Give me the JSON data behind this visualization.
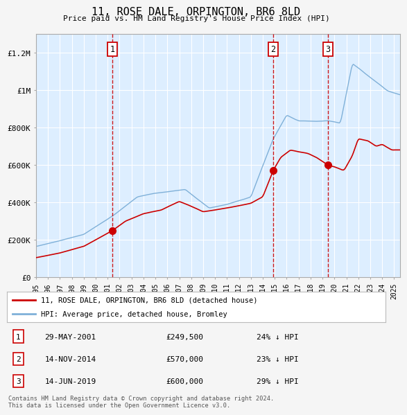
{
  "title": "11, ROSE DALE, ORPINGTON, BR6 8LD",
  "subtitle": "Price paid vs. HM Land Registry's House Price Index (HPI)",
  "plot_bg_color": "#ddeeff",
  "fig_bg_color": "#f5f5f5",
  "red_line_color": "#cc0000",
  "blue_line_color": "#7fb0d8",
  "marker_color": "#cc0000",
  "vline_color": "#cc0000",
  "grid_color": "#ffffff",
  "ylim": [
    0,
    1300000
  ],
  "yticks": [
    0,
    200000,
    400000,
    600000,
    800000,
    1000000,
    1200000
  ],
  "ytick_labels": [
    "£0",
    "£200K",
    "£400K",
    "£600K",
    "£800K",
    "£1M",
    "£1.2M"
  ],
  "purchases": [
    {
      "date_num": 2001.41,
      "price": 249500,
      "label": "1",
      "date_str": "29-MAY-2001",
      "pct": "24%"
    },
    {
      "date_num": 2014.87,
      "price": 570000,
      "label": "2",
      "date_str": "14-NOV-2014",
      "pct": "23%"
    },
    {
      "date_num": 2019.44,
      "price": 600000,
      "label": "3",
      "date_str": "14-JUN-2019",
      "pct": "29%"
    }
  ],
  "legend_red": "11, ROSE DALE, ORPINGTON, BR6 8LD (detached house)",
  "legend_blue": "HPI: Average price, detached house, Bromley",
  "footer": "Contains HM Land Registry data © Crown copyright and database right 2024.\nThis data is licensed under the Open Government Licence v3.0.",
  "xmin": 1995.0,
  "xmax": 2025.5
}
